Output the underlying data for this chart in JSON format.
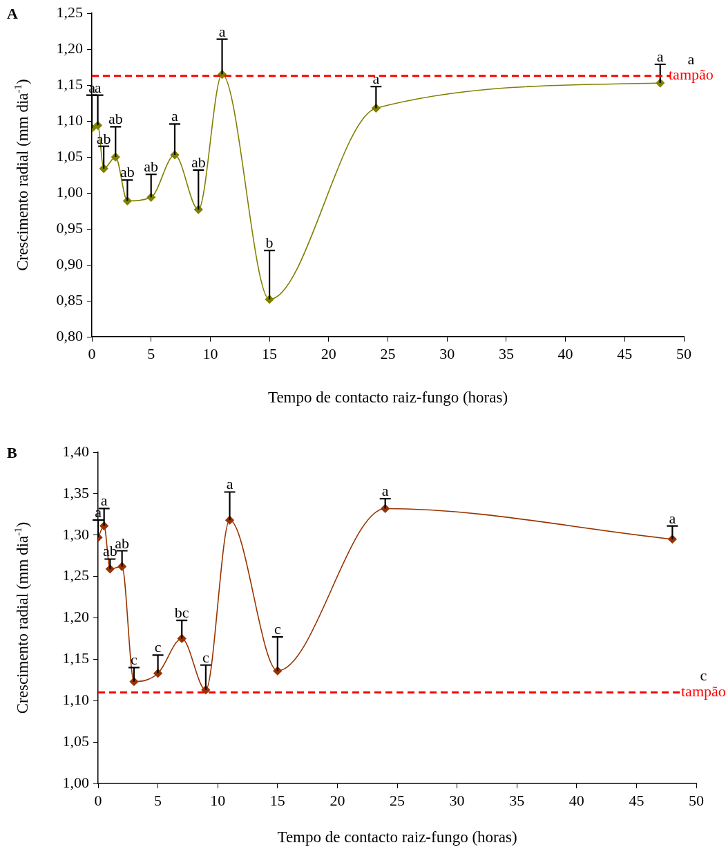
{
  "chart_data": [
    {
      "type": "line",
      "title": "A",
      "xlabel": "Tempo de contacto raiz-fungo (horas)",
      "ylabel": "Crescimento radial (mm dia$^{-1}$)",
      "x": [
        0,
        0.5,
        1,
        2,
        3,
        5,
        7,
        9,
        11,
        15,
        24,
        48
      ],
      "series": [
        {
          "color": "#808000",
          "values": [
            1.09,
            1.094,
            1.034,
            1.05,
            0.989,
            0.994,
            1.053,
            0.977,
            1.165,
            0.852,
            1.118,
            1.153
          ],
          "errors": [
            [
              1.09,
              1.136
            ],
            [
              1.094,
              1.136
            ],
            [
              1.034,
              1.065
            ],
            [
              1.05,
              1.092
            ],
            [
              0.989,
              1.018
            ],
            [
              0.994,
              1.026
            ],
            [
              1.053,
              1.096
            ],
            [
              0.977,
              1.032
            ],
            [
              1.165,
              1.214
            ],
            [
              0.852,
              0.92
            ],
            [
              1.118,
              1.148
            ],
            [
              1.153,
              1.179
            ]
          ]
        }
      ],
      "xlim": [
        0,
        50
      ],
      "xticks": [
        0,
        5,
        10,
        15,
        20,
        25,
        30,
        35,
        40,
        45,
        50
      ],
      "ylim": [
        0.8,
        1.25
      ],
      "yticks": [
        {
          "value": 0.8,
          "label": "0,80"
        },
        {
          "value": 0.85,
          "label": "0,85"
        },
        {
          "value": 0.9,
          "label": "0,90"
        },
        {
          "value": 0.95,
          "label": "0,95"
        },
        {
          "value": 1.0,
          "label": "1,00"
        },
        {
          "value": 1.05,
          "label": "1,05"
        },
        {
          "value": 1.1,
          "label": "1,10"
        },
        {
          "value": 1.15,
          "label": "1,15"
        },
        {
          "value": 1.2,
          "label": "1,20"
        },
        {
          "value": 1.25,
          "label": "1,25"
        }
      ],
      "ref_lines": [
        {
          "axis": "y",
          "value": 1.163,
          "label": "tampão",
          "color": "#ff0000",
          "line_style": "dashed"
        }
      ],
      "annotations": [
        {
          "text": "a",
          "x": 0,
          "y": 1.136
        },
        {
          "text": "a",
          "x": 0.5,
          "y": 1.136
        },
        {
          "text": "ab",
          "x": 1,
          "y": 1.065
        },
        {
          "text": "ab",
          "x": 2,
          "y": 1.092
        },
        {
          "text": "ab",
          "x": 3,
          "y": 1.018
        },
        {
          "text": "ab",
          "x": 5,
          "y": 1.026
        },
        {
          "text": "a",
          "x": 7,
          "y": 1.096
        },
        {
          "text": "ab",
          "x": 9,
          "y": 1.032
        },
        {
          "text": "a",
          "x": 11,
          "y": 1.214
        },
        {
          "text": "b",
          "x": 15,
          "y": 0.92
        },
        {
          "text": "a",
          "x": 24,
          "y": 1.148
        },
        {
          "text": "a",
          "x": 48,
          "y": 1.179
        },
        "a"
      ],
      "marker": "diamond",
      "legend": false
    },
    {
      "type": "line",
      "title": "B",
      "xlabel": "Tempo de contacto raiz-fungo (horas)",
      "ylabel": "Crescimento radial (mm dia$^{-1}$)",
      "x": [
        0,
        0.5,
        1,
        2,
        3,
        5,
        7,
        9,
        11,
        15,
        24,
        48
      ],
      "series": [
        {
          "color": "#993300",
          "values": [
            1.297,
            1.311,
            1.259,
            1.262,
            1.123,
            1.133,
            1.175,
            1.113,
            1.318,
            1.136,
            1.332,
            1.295
          ],
          "errors": [
            [
              1.297,
              1.318
            ],
            [
              1.311,
              1.332
            ],
            [
              1.259,
              1.271
            ],
            [
              1.262,
              1.281
            ],
            [
              1.123,
              1.14
            ],
            [
              1.133,
              1.155
            ],
            [
              1.175,
              1.197
            ],
            [
              1.113,
              1.143
            ],
            [
              1.318,
              1.352
            ],
            [
              1.136,
              1.177
            ],
            [
              1.332,
              1.344
            ],
            [
              1.295,
              1.311
            ]
          ]
        }
      ],
      "xlim": [
        0,
        50
      ],
      "xticks": [
        0,
        5,
        10,
        15,
        20,
        25,
        30,
        35,
        40,
        45,
        50
      ],
      "ylim": [
        1.0,
        1.4
      ],
      "yticks": [
        {
          "value": 1.0,
          "label": "1,00"
        },
        {
          "value": 1.05,
          "label": "1,05"
        },
        {
          "value": 1.1,
          "label": "1,10"
        },
        {
          "value": 1.15,
          "label": "1,15"
        },
        {
          "value": 1.2,
          "label": "1,20"
        },
        {
          "value": 1.25,
          "label": "1,25"
        },
        {
          "value": 1.3,
          "label": "1,30"
        },
        {
          "value": 1.35,
          "label": "1,35"
        },
        {
          "value": 1.4,
          "label": "1,40"
        }
      ],
      "ref_lines": [
        {
          "axis": "y",
          "value": 1.11,
          "label": "tampão",
          "color": "#ff0000",
          "line_style": "dashed"
        }
      ],
      "annotations": [
        {
          "text": "a",
          "x": 0,
          "y": 1.318
        },
        {
          "text": "a",
          "x": 0.5,
          "y": 1.332
        },
        {
          "text": "ab",
          "x": 1,
          "y": 1.271
        },
        {
          "text": "ab",
          "x": 2,
          "y": 1.281
        },
        {
          "text": "c",
          "x": 3,
          "y": 1.14
        },
        {
          "text": "c",
          "x": 5,
          "y": 1.155
        },
        {
          "text": "bc",
          "x": 7,
          "y": 1.197
        },
        {
          "text": "c",
          "x": 9,
          "y": 1.143
        },
        {
          "text": "a",
          "x": 11,
          "y": 1.352
        },
        {
          "text": "c",
          "x": 15,
          "y": 1.177
        },
        {
          "text": "a",
          "x": 24,
          "y": 1.344
        },
        {
          "text": "a",
          "x": 48,
          "y": 1.311
        },
        "c"
      ],
      "marker": "diamond",
      "legend": false
    }
  ]
}
